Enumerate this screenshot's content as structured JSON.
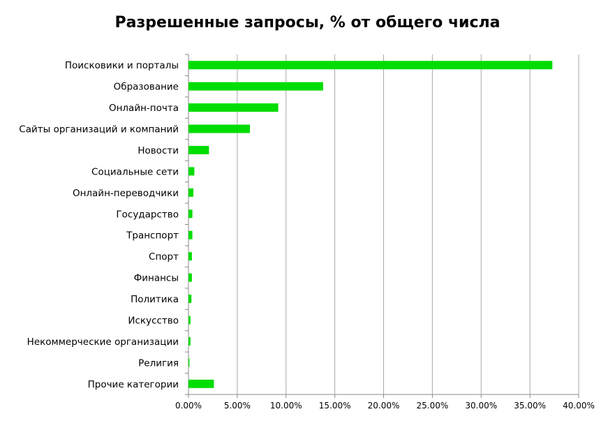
{
  "chart_data": {
    "type": "bar",
    "orientation": "horizontal",
    "title": "Разрешенные запросы, % от общего числа",
    "xlabel": "",
    "ylabel": "",
    "categories": [
      "Поисковики и порталы",
      "Образование",
      "Онлайн-почта",
      "Сайты организаций и компаний",
      "Новости",
      "Социальные сети",
      "Онлайн-переводчики",
      "Государство",
      "Транспорт",
      "Спорт",
      "Финансы",
      "Политика",
      "Искусство",
      "Некоммерческие организации",
      "Религия",
      "Прочие категории"
    ],
    "values": [
      37.3,
      13.8,
      9.2,
      6.3,
      2.1,
      0.6,
      0.5,
      0.4,
      0.4,
      0.35,
      0.35,
      0.3,
      0.2,
      0.2,
      0.1,
      2.6
    ],
    "xlim": [
      0,
      40
    ],
    "x_ticks": [
      "0.00%",
      "5.00%",
      "10.00%",
      "15.00%",
      "20.00%",
      "25.00%",
      "30.00%",
      "35.00%",
      "40.00%"
    ],
    "bar_color": "#00dd00",
    "grid": true,
    "legend": "none"
  }
}
